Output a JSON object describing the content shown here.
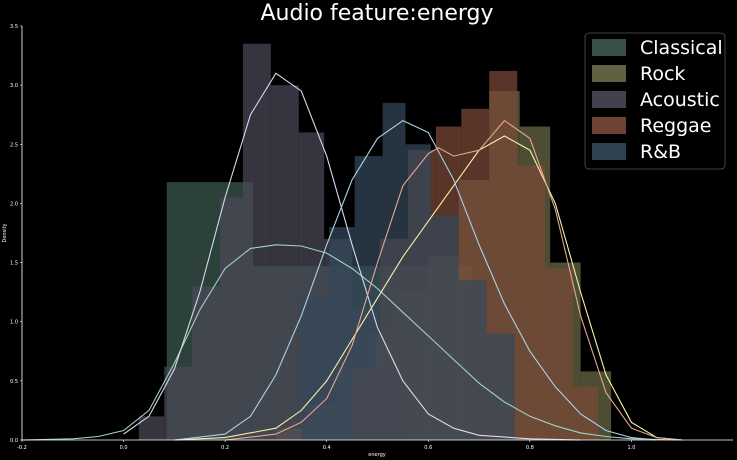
{
  "chart_data": {
    "type": "histogram-kde",
    "title": "Audio feature:energy",
    "xlabel": "energy",
    "ylabel": "Density",
    "xlim": [
      -0.2,
      1.2
    ],
    "ylim": [
      0,
      3.5
    ],
    "xticks": [
      -0.2,
      0.0,
      0.2,
      0.4,
      0.6,
      0.8,
      1.0
    ],
    "xtick_labels": [
      "-0.2",
      "0.0",
      "0.2",
      "0.4",
      "0.6",
      "0.8",
      "1.0"
    ],
    "yticks": [
      0.0,
      0.5,
      1.0,
      1.5,
      2.0,
      2.5,
      3.0,
      3.5
    ],
    "ytick_labels": [
      "0.0",
      "0.5",
      "1.0",
      "1.5",
      "2.0",
      "2.5",
      "3.0",
      "3.5"
    ],
    "legend_position": "top-right",
    "series": [
      {
        "name": "Classical",
        "color": "#3d5a50",
        "kde_color": "#9fd3c3",
        "bins": [
          {
            "x0": 0.085,
            "x1": 0.175,
            "y": 2.18
          },
          {
            "x0": 0.175,
            "x1": 0.255,
            "y": 2.18
          },
          {
            "x0": 0.255,
            "x1": 0.345,
            "y": 1.47
          },
          {
            "x0": 0.345,
            "x1": 0.425,
            "y": 1.47
          },
          {
            "x0": 0.425,
            "x1": 0.515,
            "y": 1.47
          },
          {
            "x0": 0.515,
            "x1": 0.595,
            "y": 1.47
          },
          {
            "x0": 0.595,
            "x1": 0.685,
            "y": 1.47
          }
        ],
        "kde": [
          [
            -0.2,
            0.0
          ],
          [
            -0.1,
            0.01
          ],
          [
            -0.05,
            0.03
          ],
          [
            0.0,
            0.08
          ],
          [
            0.05,
            0.25
          ],
          [
            0.1,
            0.65
          ],
          [
            0.15,
            1.1
          ],
          [
            0.2,
            1.45
          ],
          [
            0.25,
            1.62
          ],
          [
            0.3,
            1.65
          ],
          [
            0.35,
            1.64
          ],
          [
            0.4,
            1.58
          ],
          [
            0.45,
            1.45
          ],
          [
            0.5,
            1.28
          ],
          [
            0.55,
            1.08
          ],
          [
            0.6,
            0.88
          ],
          [
            0.65,
            0.68
          ],
          [
            0.7,
            0.48
          ],
          [
            0.75,
            0.32
          ],
          [
            0.8,
            0.2
          ],
          [
            0.85,
            0.12
          ],
          [
            0.9,
            0.06
          ],
          [
            0.95,
            0.03
          ],
          [
            1.0,
            0.01
          ],
          [
            1.1,
            0.0
          ]
        ]
      },
      {
        "name": "Rock",
        "color": "#6b6b48",
        "kde_color": "#f6f3a5",
        "bins": [
          {
            "x0": 0.3,
            "x1": 0.36,
            "y": 0.1
          },
          {
            "x0": 0.36,
            "x1": 0.42,
            "y": 0.3
          },
          {
            "x0": 0.42,
            "x1": 0.48,
            "y": 0.6
          },
          {
            "x0": 0.48,
            "x1": 0.54,
            "y": 0.9
          },
          {
            "x0": 0.54,
            "x1": 0.6,
            "y": 1.25
          },
          {
            "x0": 0.6,
            "x1": 0.66,
            "y": 1.55
          },
          {
            "x0": 0.66,
            "x1": 0.72,
            "y": 2.2
          },
          {
            "x0": 0.72,
            "x1": 0.78,
            "y": 2.95
          },
          {
            "x0": 0.78,
            "x1": 0.84,
            "y": 2.65
          },
          {
            "x0": 0.84,
            "x1": 0.9,
            "y": 1.5
          },
          {
            "x0": 0.9,
            "x1": 0.96,
            "y": 0.58
          }
        ],
        "kde": [
          [
            0.1,
            0.0
          ],
          [
            0.2,
            0.02
          ],
          [
            0.3,
            0.1
          ],
          [
            0.35,
            0.25
          ],
          [
            0.4,
            0.5
          ],
          [
            0.45,
            0.85
          ],
          [
            0.5,
            1.2
          ],
          [
            0.55,
            1.55
          ],
          [
            0.6,
            1.85
          ],
          [
            0.65,
            2.15
          ],
          [
            0.7,
            2.45
          ],
          [
            0.75,
            2.57
          ],
          [
            0.8,
            2.45
          ],
          [
            0.85,
            2.0
          ],
          [
            0.9,
            1.25
          ],
          [
            0.95,
            0.55
          ],
          [
            1.0,
            0.15
          ],
          [
            1.05,
            0.02
          ],
          [
            1.1,
            0.0
          ]
        ]
      },
      {
        "name": "Acoustic",
        "color": "#4a4858",
        "kde_color": "#dcd6f0",
        "bins": [
          {
            "x0": 0.03,
            "x1": 0.08,
            "y": 0.2
          },
          {
            "x0": 0.08,
            "x1": 0.135,
            "y": 0.62
          },
          {
            "x0": 0.135,
            "x1": 0.19,
            "y": 1.3
          },
          {
            "x0": 0.19,
            "x1": 0.235,
            "y": 2.05
          },
          {
            "x0": 0.235,
            "x1": 0.29,
            "y": 3.35
          },
          {
            "x0": 0.29,
            "x1": 0.345,
            "y": 3.0
          },
          {
            "x0": 0.345,
            "x1": 0.395,
            "y": 2.6
          },
          {
            "x0": 0.395,
            "x1": 0.45,
            "y": 1.7
          },
          {
            "x0": 0.45,
            "x1": 0.5,
            "y": 1.1
          },
          {
            "x0": 0.5,
            "x1": 0.555,
            "y": 0.55
          }
        ],
        "kde": [
          [
            0.0,
            0.05
          ],
          [
            0.05,
            0.2
          ],
          [
            0.1,
            0.6
          ],
          [
            0.15,
            1.25
          ],
          [
            0.2,
            2.05
          ],
          [
            0.25,
            2.75
          ],
          [
            0.3,
            3.1
          ],
          [
            0.35,
            2.95
          ],
          [
            0.4,
            2.4
          ],
          [
            0.45,
            1.65
          ],
          [
            0.5,
            0.95
          ],
          [
            0.55,
            0.5
          ],
          [
            0.6,
            0.22
          ],
          [
            0.65,
            0.1
          ],
          [
            0.7,
            0.04
          ],
          [
            0.8,
            0.01
          ],
          [
            0.9,
            0.0
          ]
        ]
      },
      {
        "name": "Reggae",
        "color": "#7a4a38",
        "kde_color": "#e8a48f",
        "bins": [
          {
            "x0": 0.45,
            "x1": 0.505,
            "y": 0.6
          },
          {
            "x0": 0.505,
            "x1": 0.56,
            "y": 1.7
          },
          {
            "x0": 0.56,
            "x1": 0.615,
            "y": 2.45
          },
          {
            "x0": 0.615,
            "x1": 0.665,
            "y": 2.65
          },
          {
            "x0": 0.665,
            "x1": 0.72,
            "y": 2.8
          },
          {
            "x0": 0.72,
            "x1": 0.775,
            "y": 3.12
          },
          {
            "x0": 0.775,
            "x1": 0.83,
            "y": 2.32
          },
          {
            "x0": 0.83,
            "x1": 0.885,
            "y": 1.45
          },
          {
            "x0": 0.885,
            "x1": 0.935,
            "y": 0.45
          }
        ],
        "kde": [
          [
            0.2,
            0.0
          ],
          [
            0.3,
            0.05
          ],
          [
            0.35,
            0.15
          ],
          [
            0.4,
            0.35
          ],
          [
            0.45,
            0.8
          ],
          [
            0.5,
            1.5
          ],
          [
            0.55,
            2.15
          ],
          [
            0.6,
            2.42
          ],
          [
            0.62,
            2.47
          ],
          [
            0.65,
            2.4
          ],
          [
            0.7,
            2.45
          ],
          [
            0.75,
            2.7
          ],
          [
            0.8,
            2.55
          ],
          [
            0.85,
            1.95
          ],
          [
            0.9,
            1.05
          ],
          [
            0.95,
            0.4
          ],
          [
            1.0,
            0.1
          ],
          [
            1.05,
            0.02
          ],
          [
            1.1,
            0.0
          ]
        ]
      },
      {
        "name": "R&B",
        "color": "#35485a",
        "kde_color": "#a9d3e9",
        "bins": [
          {
            "x0": 0.35,
            "x1": 0.405,
            "y": 1.2
          },
          {
            "x0": 0.405,
            "x1": 0.455,
            "y": 1.8
          },
          {
            "x0": 0.455,
            "x1": 0.51,
            "y": 2.4
          },
          {
            "x0": 0.51,
            "x1": 0.555,
            "y": 2.85
          },
          {
            "x0": 0.555,
            "x1": 0.605,
            "y": 2.5
          },
          {
            "x0": 0.605,
            "x1": 0.66,
            "y": 1.9
          },
          {
            "x0": 0.66,
            "x1": 0.715,
            "y": 1.35
          },
          {
            "x0": 0.715,
            "x1": 0.77,
            "y": 0.9
          }
        ],
        "kde": [
          [
            0.1,
            0.0
          ],
          [
            0.2,
            0.05
          ],
          [
            0.25,
            0.2
          ],
          [
            0.3,
            0.55
          ],
          [
            0.35,
            1.05
          ],
          [
            0.4,
            1.65
          ],
          [
            0.45,
            2.2
          ],
          [
            0.5,
            2.55
          ],
          [
            0.55,
            2.7
          ],
          [
            0.6,
            2.6
          ],
          [
            0.65,
            2.2
          ],
          [
            0.7,
            1.65
          ],
          [
            0.75,
            1.15
          ],
          [
            0.8,
            0.75
          ],
          [
            0.85,
            0.45
          ],
          [
            0.9,
            0.22
          ],
          [
            0.95,
            0.08
          ],
          [
            1.0,
            0.02
          ],
          [
            1.05,
            0.0
          ]
        ]
      }
    ]
  }
}
